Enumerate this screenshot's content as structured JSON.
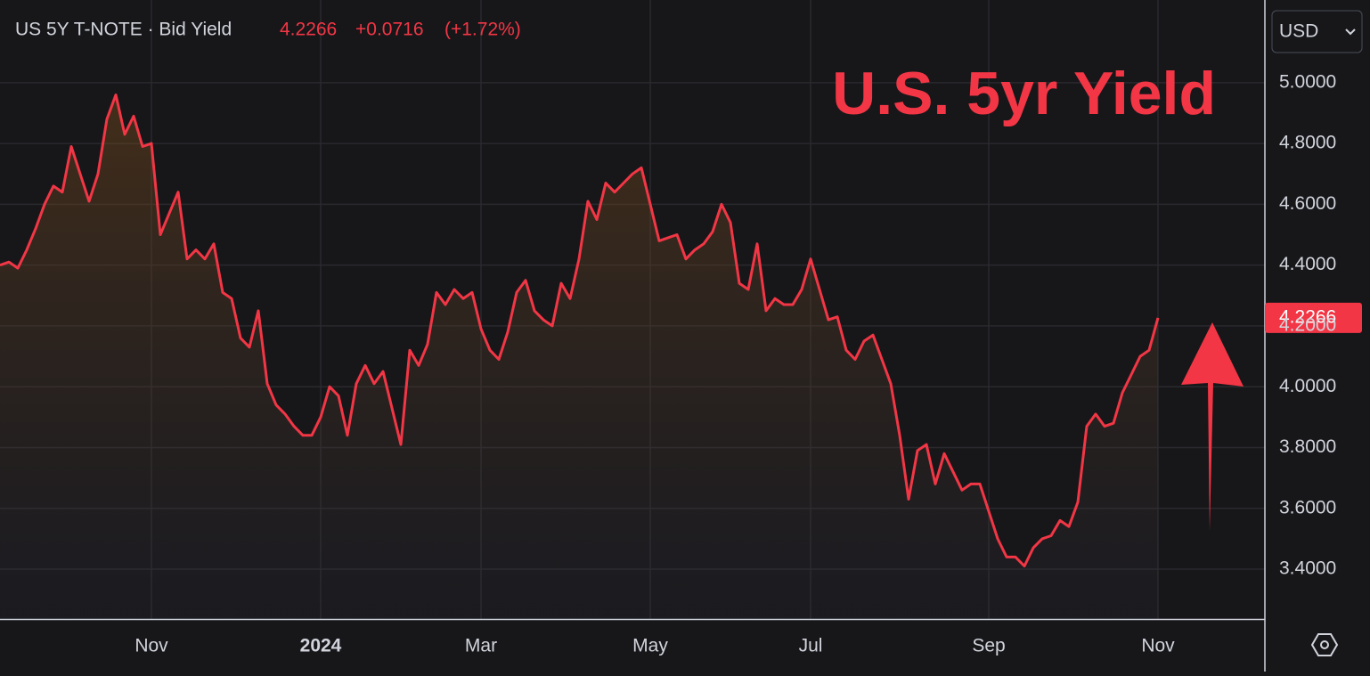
{
  "header": {
    "title": "US 5Y T-NOTE · Bid Yield",
    "change": "+0.0716",
    "change_pct": "(+1.72%)",
    "currency": "USD"
  },
  "chart_data": {
    "type": "line",
    "title": "U.S. 5yr Yield",
    "color": "#f23645",
    "grid": true,
    "categories": [
      null,
      null,
      null,
      null,
      null,
      null,
      null,
      null,
      null,
      null,
      null,
      null,
      null,
      null,
      null,
      null,
      null,
      "Nov",
      null,
      null,
      null,
      null,
      null,
      null,
      null,
      null,
      null,
      null,
      null,
      null,
      null,
      null,
      null,
      null,
      null,
      null,
      "2024",
      null,
      null,
      null,
      null,
      null,
      null,
      null,
      null,
      null,
      null,
      null,
      null,
      null,
      null,
      null,
      null,
      null,
      "Mar",
      null,
      null,
      null,
      null,
      null,
      null,
      null,
      null,
      null,
      null,
      null,
      null,
      null,
      null,
      null,
      null,
      null,
      null,
      "May",
      null,
      null,
      null,
      null,
      null,
      null,
      null,
      null,
      null,
      null,
      null,
      null,
      null,
      null,
      null,
      null,
      null,
      "Jul",
      null,
      null,
      null,
      null,
      null,
      null,
      null,
      null,
      null,
      null,
      null,
      null,
      null,
      null,
      null,
      null,
      null,
      null,
      null,
      "Sep",
      null,
      null,
      null,
      null,
      null,
      null,
      null,
      null,
      null,
      null,
      null,
      null,
      null,
      null,
      null,
      null,
      null,
      null,
      "Nov"
    ],
    "values": [
      4.4,
      4.41,
      4.39,
      4.45,
      4.52,
      4.6,
      4.66,
      4.64,
      4.79,
      4.7,
      4.61,
      4.7,
      4.88,
      4.96,
      4.83,
      4.89,
      4.79,
      4.8,
      4.5,
      4.57,
      4.64,
      4.42,
      4.45,
      4.42,
      4.47,
      4.31,
      4.29,
      4.16,
      4.13,
      4.25,
      4.01,
      3.94,
      3.91,
      3.87,
      3.84,
      3.84,
      3.9,
      4.0,
      3.97,
      3.84,
      4.01,
      4.07,
      4.01,
      4.05,
      3.93,
      3.81,
      4.12,
      4.07,
      4.14,
      4.31,
      4.27,
      4.32,
      4.29,
      4.31,
      4.19,
      4.12,
      4.09,
      4.18,
      4.31,
      4.35,
      4.25,
      4.22,
      4.2,
      4.34,
      4.29,
      4.42,
      4.61,
      4.55,
      4.67,
      4.64,
      4.67,
      4.7,
      4.72,
      4.6,
      4.48,
      4.49,
      4.5,
      4.42,
      4.45,
      4.47,
      4.51,
      4.6,
      4.54,
      4.34,
      4.32,
      4.47,
      4.25,
      4.29,
      4.27,
      4.27,
      4.32,
      4.42,
      4.32,
      4.22,
      4.23,
      4.12,
      4.09,
      4.15,
      4.17,
      4.09,
      4.01,
      3.84,
      3.63,
      3.79,
      3.81,
      3.68,
      3.78,
      3.72,
      3.66,
      3.68,
      3.68,
      3.59,
      3.5,
      3.44,
      3.44,
      3.41,
      3.47,
      3.5,
      3.51,
      3.56,
      3.54,
      3.62,
      3.87,
      3.91,
      3.87,
      3.88,
      3.98,
      4.04,
      4.1,
      4.12,
      4.2266
    ],
    "ylim": [
      3.236,
      5.272
    ],
    "yticks": [
      {
        "value": 3.4,
        "label": "3.4000"
      },
      {
        "value": 3.6,
        "label": "3.6000"
      },
      {
        "value": 3.8,
        "label": "3.8000"
      },
      {
        "value": 4.0,
        "label": "4.0000"
      },
      {
        "value": 4.2,
        "label": "4.2000"
      },
      {
        "value": 4.4,
        "label": "4.4000"
      },
      {
        "value": 4.6,
        "label": "4.6000"
      },
      {
        "value": 4.8,
        "label": "4.8000"
      },
      {
        "value": 5.0,
        "label": "5.0000"
      }
    ]
  }
}
